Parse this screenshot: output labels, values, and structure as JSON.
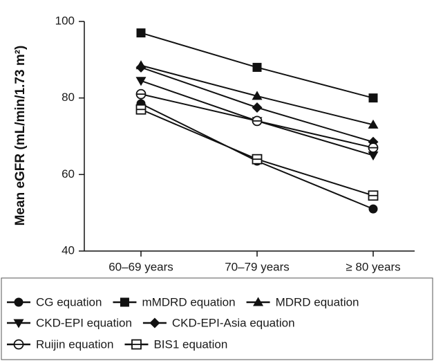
{
  "chart_data": {
    "type": "line",
    "categories": [
      "60–69 years",
      "70–79 years",
      "≥ 80 years"
    ],
    "ylabel": "Mean eGFR (mL/min/1.73 m²)",
    "ylim": [
      40,
      100
    ],
    "yticks": [
      "40",
      "60",
      "80",
      "100"
    ],
    "series": [
      {
        "name": "CG equation",
        "values": [
          78.5,
          63.5,
          51.0
        ],
        "marker": "circle"
      },
      {
        "name": "mMDRD equation",
        "values": [
          97.0,
          88.0,
          80.0
        ],
        "marker": "square"
      },
      {
        "name": "MDRD equation",
        "values": [
          88.5,
          80.5,
          73.0
        ],
        "marker": "triangle-up"
      },
      {
        "name": "CKD-EPI equation",
        "values": [
          84.5,
          74.0,
          65.0
        ],
        "marker": "triangle-down"
      },
      {
        "name": "CKD-EPI-Asia equation",
        "values": [
          88.0,
          77.5,
          68.5
        ],
        "marker": "diamond"
      },
      {
        "name": "Ruijin equation",
        "values": [
          81.0,
          74.0,
          67.0
        ],
        "marker": "circle-open"
      },
      {
        "name": "BIS1 equation",
        "values": [
          77.0,
          64.0,
          54.5
        ],
        "marker": "square-open"
      }
    ],
    "legend": "bottom",
    "grid": false
  },
  "colors": {
    "line": "#111111",
    "axis": "#111111",
    "legend_border": "#555555"
  }
}
